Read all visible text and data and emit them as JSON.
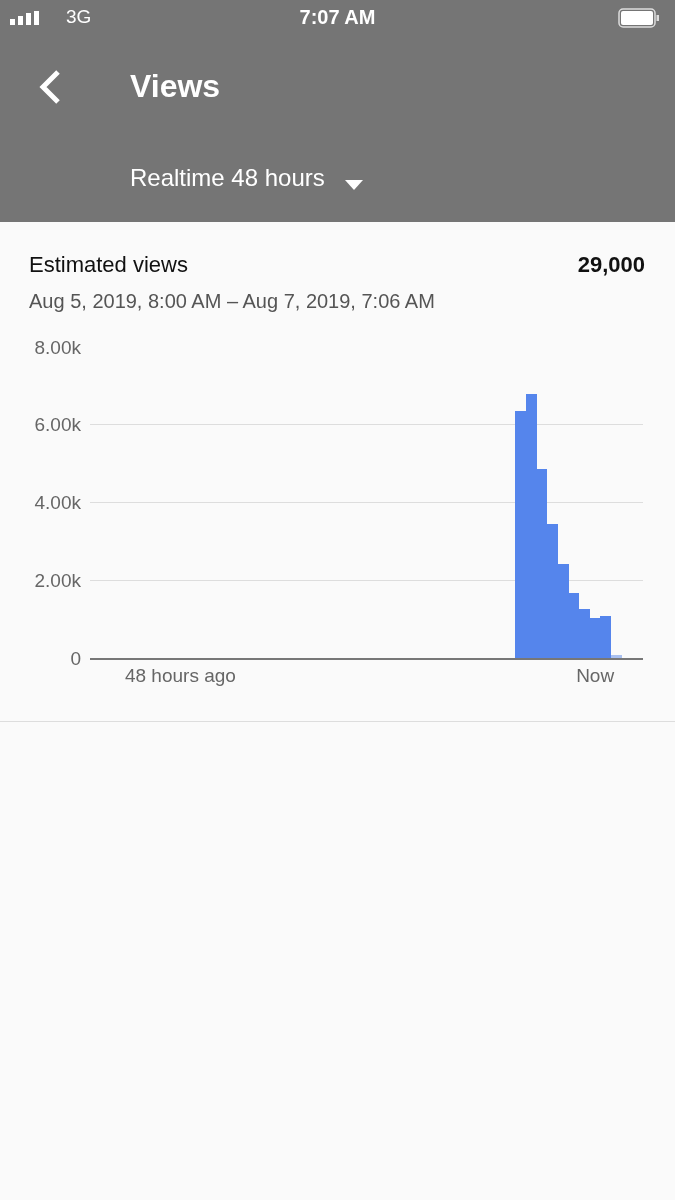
{
  "chart_data": {
    "type": "bar",
    "title": "Views",
    "subtitle": "Estimated views",
    "annotations": [
      "Realtime 48 hours",
      "29,000",
      "Aug 5, 2019, 8:00 AM – Aug 7, 2019, 7:06 AM",
      "3G",
      "7:07 AM"
    ],
    "categories": [
      null,
      null,
      null,
      null,
      null,
      null,
      null,
      null,
      "48 hours ago",
      null,
      null,
      null,
      null,
      null,
      null,
      null,
      null,
      null,
      null,
      null,
      null,
      null,
      null,
      null,
      null,
      null,
      null,
      null,
      null,
      null,
      null,
      null,
      null,
      null,
      null,
      null,
      null,
      null,
      null,
      null,
      null,
      null,
      null,
      null,
      null,
      null,
      null,
      "Now",
      null,
      null,
      null,
      null
    ],
    "values": [
      null,
      null,
      null,
      null,
      null,
      null,
      null,
      null,
      null,
      null,
      null,
      null,
      null,
      null,
      null,
      null,
      null,
      null,
      null,
      null,
      null,
      null,
      null,
      null,
      null,
      null,
      null,
      null,
      null,
      null,
      null,
      null,
      null,
      null,
      null,
      null,
      null,
      null,
      null,
      null,
      6350,
      6780,
      4860,
      3450,
      2420,
      1680,
      1260,
      1030,
      1080,
      80,
      null,
      null
    ],
    "colors": [
      "#5585ec",
      "#5585ec",
      "#5585ec",
      "#5585ec",
      "#5585ec",
      "#5585ec",
      "#5585ec",
      "#5585ec",
      "#5585ec",
      "#5585ec",
      "#5585ec",
      "#5585ec",
      "#5585ec",
      "#5585ec",
      "#5585ec",
      "#5585ec",
      "#5585ec",
      "#5585ec",
      "#5585ec",
      "#5585ec",
      "#5585ec",
      "#5585ec",
      "#5585ec",
      "#5585ec",
      "#5585ec",
      "#5585ec",
      "#5585ec",
      "#5585ec",
      "#5585ec",
      "#5585ec",
      "#5585ec",
      "#5585ec",
      "#5585ec",
      "#5585ec",
      "#5585ec",
      "#5585ec",
      "#5585ec",
      "#5585ec",
      "#5585ec",
      "#5585ec",
      "#5585ec",
      "#5585ec",
      "#5585ec",
      "#5585ec",
      "#5585ec",
      "#5585ec",
      "#5585ec",
      "#5585ec",
      "#5585ec",
      "#a9c0f0",
      "#5585ec",
      "#5585ec"
    ],
    "ylim": [
      0,
      8000
    ],
    "yticks": [
      {
        "value": 0,
        "label": "0"
      },
      {
        "value": 2000,
        "label": "2.00k"
      },
      {
        "value": 4000,
        "label": "4.00k"
      },
      {
        "value": 6000,
        "label": "6.00k"
      },
      {
        "value": 8000,
        "label": "8.00k"
      }
    ],
    "grid": "y"
  }
}
